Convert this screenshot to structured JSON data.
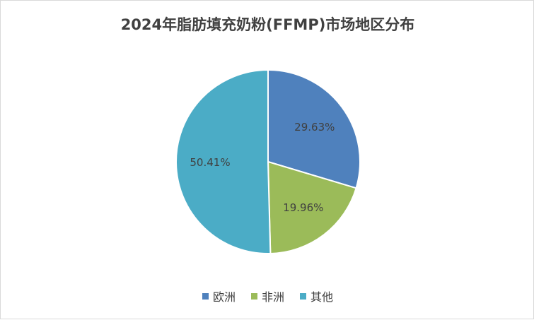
{
  "chart_data": {
    "type": "pie",
    "title": "2024年脂肪填充奶粉(FFMP)市场地区分布",
    "categories": [
      "欧洲",
      "非洲",
      "其他"
    ],
    "values": [
      29.63,
      19.96,
      50.41
    ],
    "labels": [
      "29.63%",
      "19.96%",
      "50.41%"
    ],
    "colors": [
      "#4f81bd",
      "#9bbb59",
      "#4bacc6"
    ],
    "legend_position": "bottom",
    "start_angle": "12 o'clock",
    "direction": "clockwise"
  }
}
